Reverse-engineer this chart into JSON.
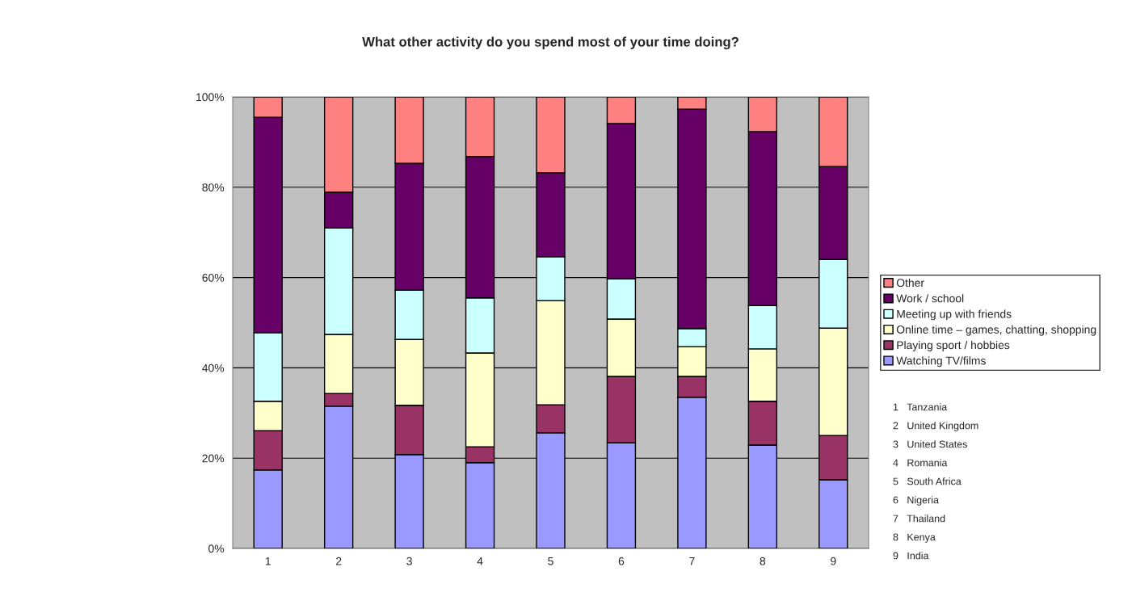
{
  "chart_data": {
    "type": "bar",
    "stacked": true,
    "title": "What other activity do you spend most of your time doing?",
    "categories": [
      "1",
      "2",
      "3",
      "4",
      "5",
      "6",
      "7",
      "8",
      "9"
    ],
    "series": [
      {
        "name": "Watching TV/films",
        "color": "#9999ff",
        "values": [
          17.4,
          31.5,
          20.8,
          19.0,
          25.6,
          23.4,
          33.5,
          22.9,
          15.2
        ]
      },
      {
        "name": "Playing sport / hobbies",
        "color": "#993366",
        "values": [
          8.7,
          2.8,
          10.9,
          3.5,
          6.2,
          14.7,
          4.6,
          9.7,
          9.8
        ]
      },
      {
        "name": "Online time – games, chatting, shopping",
        "color": "#ffffcc",
        "values": [
          6.5,
          13.1,
          14.6,
          20.8,
          23.1,
          12.7,
          6.6,
          11.6,
          23.8
        ]
      },
      {
        "name": "Meeting up with friends",
        "color": "#ccffff",
        "values": [
          15.2,
          23.6,
          10.9,
          12.2,
          9.7,
          8.9,
          4.0,
          9.6,
          15.2
        ]
      },
      {
        "name": "Work / school",
        "color": "#660066",
        "values": [
          47.7,
          7.9,
          28.1,
          31.3,
          18.6,
          34.4,
          48.6,
          38.5,
          20.6
        ]
      },
      {
        "name": "Other",
        "color": "#ff8080",
        "values": [
          4.5,
          21.1,
          14.7,
          13.2,
          16.8,
          5.9,
          2.7,
          7.7,
          15.4
        ]
      }
    ],
    "ylim": [
      0,
      100
    ],
    "yticks": [
      {
        "value": 0,
        "label": "0%"
      },
      {
        "value": 20,
        "label": "20%"
      },
      {
        "value": 40,
        "label": "40%"
      },
      {
        "value": 60,
        "label": "60%"
      },
      {
        "value": 80,
        "label": "80%"
      },
      {
        "value": 100,
        "label": "100%"
      }
    ],
    "grid": "y",
    "legend": "right",
    "annotations": [
      "1   Tanzania",
      "2   United Kingdom",
      "3   United States",
      "4   Romania",
      "5   South Africa",
      "6   Nigeria",
      "7   Thailand",
      "8   Kenya",
      "9   India"
    ]
  }
}
